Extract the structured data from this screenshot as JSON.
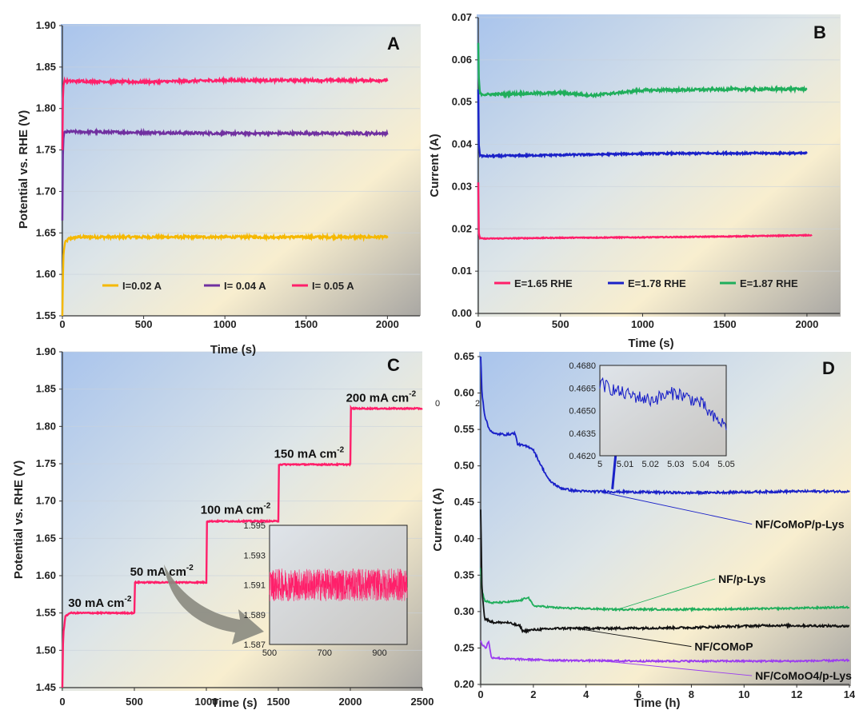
{
  "colors": {
    "gold": "#f5b800",
    "purple": "#7030a0",
    "pink": "#ff1f6a",
    "blue": "#1a21c8",
    "green": "#1fae5b",
    "black": "#111111",
    "violet": "#9b3cf0"
  },
  "chart_data": [
    {
      "id": "A",
      "panel_label": "A",
      "type": "line",
      "xlabel": "Time (s)",
      "ylabel": "Potential vs. RHE (V)",
      "xlim": [
        0,
        2200
      ],
      "ylim": [
        1.55,
        1.9
      ],
      "xticks": [
        0,
        500,
        1000,
        1500,
        2000
      ],
      "yticks": [
        1.55,
        1.6,
        1.65,
        1.7,
        1.75,
        1.8,
        1.85,
        1.9
      ],
      "grid": true,
      "legend": "bottom",
      "series": [
        {
          "name": "I=0.02 A",
          "color": "#f5b800",
          "x": [
            0,
            5,
            15,
            40,
            100,
            2000
          ],
          "y": [
            1.55,
            1.62,
            1.638,
            1.643,
            1.645,
            1.645
          ],
          "noise": 0.0015
        },
        {
          "name": "I= 0.04 A",
          "color": "#7030a0",
          "x": [
            0,
            4,
            12,
            40,
            500,
            1000,
            2000
          ],
          "y": [
            1.665,
            1.76,
            1.771,
            1.772,
            1.771,
            1.77,
            1.77
          ],
          "noise": 0.0015
        },
        {
          "name": "I= 0.05 A",
          "color": "#ff1f6a",
          "x": [
            0,
            4,
            12,
            40,
            500,
            1000,
            2000
          ],
          "y": [
            1.75,
            1.825,
            1.833,
            1.833,
            1.832,
            1.834,
            1.834
          ],
          "noise": 0.0015
        }
      ]
    },
    {
      "id": "B",
      "panel_label": "B",
      "type": "line",
      "xlabel": "Time (s)",
      "ylabel": "Current (A)",
      "xlim": [
        0,
        2200
      ],
      "ylim": [
        0,
        0.07
      ],
      "xticks": [
        0,
        500,
        1000,
        1500,
        2000
      ],
      "yticks": [
        0,
        0.01,
        0.02,
        0.03,
        0.04,
        0.05,
        0.06,
        0.07
      ],
      "grid": true,
      "legend": "bottom",
      "series": [
        {
          "name": "E=1.65 RHE",
          "color": "#ff1f6a",
          "x": [
            0,
            3,
            10,
            30,
            500,
            1000,
            1500,
            2030
          ],
          "y": [
            0.031,
            0.019,
            0.0178,
            0.0177,
            0.0179,
            0.018,
            0.0182,
            0.0185
          ],
          "noise": 0.0001
        },
        {
          "name": "E=1.78 RHE",
          "color": "#1a21c8",
          "x": [
            0,
            3,
            10,
            30,
            500,
            1000,
            1500,
            2000
          ],
          "y": [
            0.053,
            0.04,
            0.0375,
            0.0372,
            0.0375,
            0.0378,
            0.0379,
            0.0379
          ],
          "noise": 0.0002
        },
        {
          "name": "E=1.87 RHE",
          "color": "#1fae5b",
          "x": [
            0,
            3,
            10,
            40,
            500,
            700,
            1000,
            1500,
            2000
          ],
          "y": [
            0.064,
            0.056,
            0.052,
            0.0518,
            0.0522,
            0.0516,
            0.0528,
            0.053,
            0.0531
          ],
          "noise": 0.0003
        }
      ]
    },
    {
      "id": "C",
      "panel_label": "C",
      "type": "line",
      "xlabel": "Time (s)",
      "ylabel": "Potential vs. RHE (V)",
      "xlim": [
        0,
        2500
      ],
      "ylim": [
        1.45,
        1.9
      ],
      "xticks": [
        0,
        500,
        1000,
        1500,
        2000,
        2500
      ],
      "yticks": [
        1.45,
        1.5,
        1.55,
        1.6,
        1.65,
        1.7,
        1.75,
        1.8,
        1.85,
        1.9
      ],
      "grid": true,
      "series": [
        {
          "name": "",
          "color": "#ff1f6a",
          "x": [
            0,
            5,
            20,
            50,
            500,
            501,
            1000,
            1001,
            1500,
            1501,
            2000,
            2001,
            2500
          ],
          "y": [
            1.45,
            1.52,
            1.545,
            1.55,
            1.55,
            1.591,
            1.591,
            1.673,
            1.673,
            1.749,
            1.749,
            1.824,
            1.824
          ],
          "noise": 0.0008
        }
      ],
      "annotations": [
        {
          "text": "30 mA cm",
          "sup": "-2",
          "x": 40,
          "y": 1.558
        },
        {
          "text": "50 mA cm",
          "sup": "-2",
          "x": 470,
          "y": 1.6
        },
        {
          "text": "100 mA cm",
          "sup": "-2",
          "x": 960,
          "y": 1.683
        },
        {
          "text": "150 mA cm",
          "sup": "-2",
          "x": 1470,
          "y": 1.758
        },
        {
          "text": "200 mA cm",
          "sup": "-2",
          "x": 1970,
          "y": 1.833
        }
      ],
      "inset": {
        "type": "line",
        "xlim": [
          500,
          1000
        ],
        "ylim": [
          1.587,
          1.595
        ],
        "xticks": [
          500,
          700,
          900
        ],
        "yticks": [
          1.587,
          1.589,
          1.591,
          1.593,
          1.595
        ],
        "series": [
          {
            "color": "#ff1f6a",
            "x": [
              500,
              1000
            ],
            "y": [
              1.591,
              1.591
            ],
            "noise": 0.0011
          }
        ]
      }
    },
    {
      "id": "D",
      "panel_label": "D",
      "type": "line",
      "xlabel": "Time (h)",
      "ylabel": "Current (A)",
      "xlim": [
        0,
        14
      ],
      "ylim": [
        0.2,
        0.65
      ],
      "xticks": [
        0,
        2,
        4,
        6,
        8,
        10,
        12,
        14
      ],
      "yticks": [
        0.2,
        0.25,
        0.3,
        0.35,
        0.4,
        0.45,
        0.5,
        0.55,
        0.6,
        0.65
      ],
      "grid": false,
      "stray_labels": [
        "0",
        "2"
      ],
      "series": [
        {
          "name": "NF/CoMoP/p-Lys",
          "color": "#1a21c8",
          "x": [
            0,
            0.05,
            0.15,
            0.3,
            0.5,
            1.0,
            1.3,
            1.4,
            1.9,
            2.0,
            2.3,
            2.6,
            3.0,
            3.5,
            4.0,
            6.0,
            8.0,
            10.0,
            12.0,
            14.0
          ],
          "y": [
            0.65,
            0.6,
            0.57,
            0.552,
            0.544,
            0.543,
            0.545,
            0.53,
            0.525,
            0.522,
            0.5,
            0.48,
            0.47,
            0.466,
            0.465,
            0.464,
            0.463,
            0.464,
            0.465,
            0.465
          ],
          "noise": 0.0015
        },
        {
          "name": "NF/p-Lys",
          "color": "#1fae5b",
          "x": [
            0,
            0.05,
            0.15,
            0.4,
            1.0,
            1.5,
            1.8,
            2.0,
            3.0,
            5.0,
            8.0,
            11.0,
            14.0
          ],
          "y": [
            0.36,
            0.33,
            0.315,
            0.312,
            0.313,
            0.315,
            0.32,
            0.308,
            0.305,
            0.303,
            0.303,
            0.304,
            0.306
          ],
          "noise": 0.0012
        },
        {
          "name": "NF/COMoP",
          "color": "#111111",
          "x": [
            0,
            0.05,
            0.15,
            0.5,
            1.0,
            1.5,
            1.6,
            2.0,
            3.0,
            5.0,
            8.0,
            11.0,
            14.0
          ],
          "y": [
            0.44,
            0.33,
            0.29,
            0.285,
            0.285,
            0.28,
            0.273,
            0.275,
            0.277,
            0.277,
            0.278,
            0.281,
            0.28
          ],
          "noise": 0.0015
        },
        {
          "name": "NF/CoMoO4/p-Lys",
          "color": "#9b3cf0",
          "x": [
            0,
            0.05,
            0.2,
            0.3,
            0.4,
            1.0,
            3.0,
            6.0,
            9.0,
            12.0,
            14.0
          ],
          "y": [
            0.26,
            0.255,
            0.25,
            0.26,
            0.237,
            0.235,
            0.233,
            0.232,
            0.232,
            0.232,
            0.233
          ],
          "noise": 0.0012
        }
      ],
      "callouts": [
        {
          "text": "NF/CoMoP/p-Lys",
          "color": "#1a21c8",
          "from": [
            4.6,
            0.464
          ],
          "to": [
            10.3,
            0.42
          ]
        },
        {
          "text": "NF/p-Lys",
          "color": "#1fae5b",
          "from": [
            5.3,
            0.304
          ],
          "to": [
            8.9,
            0.345
          ]
        },
        {
          "text": "NF/COMoP",
          "color": "#111111",
          "from": [
            3.6,
            0.277
          ],
          "to": [
            8.0,
            0.252
          ]
        },
        {
          "text": "NF/CoMoO4/p-Lys",
          "color": "#9b3cf0",
          "from": [
            4.4,
            0.233
          ],
          "to": [
            10.3,
            0.212
          ]
        }
      ],
      "inset": {
        "type": "line",
        "xlim": [
          5,
          5.05
        ],
        "ylim": [
          0.462,
          0.468
        ],
        "xticks": [
          5,
          5.01,
          5.02,
          5.03,
          5.04,
          5.05
        ],
        "yticks": [
          0.462,
          0.4635,
          0.465,
          0.4665,
          0.468
        ],
        "series": [
          {
            "color": "#1a21c8",
            "x": [
              5.0,
              5.008,
              5.02,
              5.03,
              5.04,
              5.045,
              5.05
            ],
            "y": [
              0.4668,
              0.4662,
              0.4657,
              0.4662,
              0.4655,
              0.4645,
              0.464
            ],
            "noise": 0.00045
          }
        ]
      }
    }
  ]
}
